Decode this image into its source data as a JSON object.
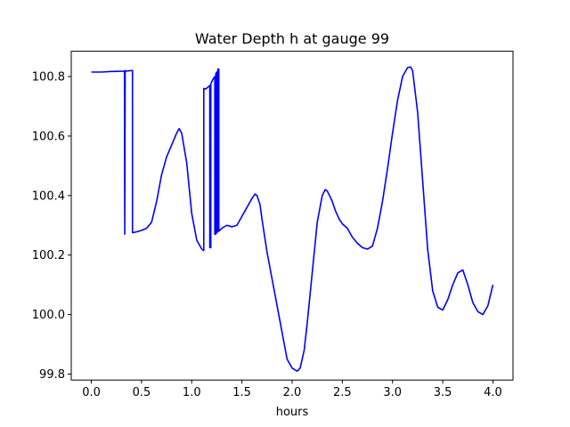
{
  "chart_data": {
    "type": "line",
    "title": "Water Depth h at gauge 99",
    "xlabel": "hours",
    "ylabel": "",
    "xlim": [
      -0.2,
      4.2
    ],
    "ylim": [
      99.78,
      100.885
    ],
    "xticks": [
      0.0,
      0.5,
      1.0,
      1.5,
      2.0,
      2.5,
      3.0,
      3.5,
      4.0
    ],
    "xtick_labels": [
      "0.0",
      "0.5",
      "1.0",
      "1.5",
      "2.0",
      "2.5",
      "3.0",
      "3.5",
      "4.0"
    ],
    "yticks": [
      99.8,
      100.0,
      100.2,
      100.4,
      100.6,
      100.8
    ],
    "ytick_labels": [
      "99.8",
      "100.0",
      "100.2",
      "100.4",
      "100.6",
      "100.8"
    ],
    "grid": false,
    "series": [
      {
        "color": "#0000ff",
        "x": [
          0.0,
          0.1,
          0.2,
          0.33,
          0.333,
          0.337,
          0.34,
          0.34,
          0.4,
          0.41,
          0.41,
          0.412,
          0.45,
          0.5,
          0.55,
          0.6,
          0.65,
          0.7,
          0.75,
          0.8,
          0.85,
          0.875,
          0.9,
          0.95,
          1.0,
          1.05,
          1.1,
          1.12,
          1.12,
          1.14,
          1.18,
          1.18,
          1.19,
          1.19,
          1.21,
          1.23,
          1.23,
          1.24,
          1.24,
          1.25,
          1.25,
          1.26,
          1.26,
          1.27,
          1.27,
          1.3,
          1.35,
          1.4,
          1.45,
          1.5,
          1.55,
          1.6,
          1.63,
          1.65,
          1.68,
          1.7,
          1.75,
          1.8,
          1.85,
          1.9,
          1.95,
          2.0,
          2.05,
          2.08,
          2.12,
          2.15,
          2.2,
          2.25,
          2.3,
          2.33,
          2.35,
          2.38,
          2.4,
          2.43,
          2.47,
          2.5,
          2.55,
          2.6,
          2.65,
          2.7,
          2.75,
          2.8,
          2.85,
          2.9,
          2.95,
          3.0,
          3.05,
          3.1,
          3.15,
          3.18,
          3.2,
          3.25,
          3.3,
          3.35,
          3.4,
          3.45,
          3.5,
          3.55,
          3.6,
          3.65,
          3.7,
          3.75,
          3.8,
          3.85,
          3.9,
          3.95,
          4.0
        ],
        "y": [
          100.815,
          100.815,
          100.817,
          100.818,
          100.27,
          100.82,
          100.82,
          100.818,
          100.82,
          100.82,
          100.275,
          100.275,
          100.278,
          100.283,
          100.29,
          100.31,
          100.38,
          100.47,
          100.53,
          100.57,
          100.61,
          100.625,
          100.61,
          100.51,
          100.34,
          100.25,
          100.22,
          100.215,
          100.76,
          100.758,
          100.77,
          100.225,
          100.225,
          100.775,
          100.79,
          100.8,
          100.27,
          100.27,
          100.81,
          100.815,
          100.275,
          100.28,
          100.825,
          100.825,
          100.28,
          100.29,
          100.3,
          100.295,
          100.3,
          100.33,
          100.36,
          100.39,
          100.405,
          100.4,
          100.37,
          100.32,
          100.21,
          100.12,
          100.03,
          99.94,
          99.85,
          99.82,
          99.81,
          99.82,
          99.88,
          99.97,
          100.14,
          100.31,
          100.4,
          100.42,
          100.415,
          100.395,
          100.38,
          100.35,
          100.32,
          100.305,
          100.29,
          100.26,
          100.24,
          100.225,
          100.22,
          100.23,
          100.29,
          100.38,
          100.49,
          100.61,
          100.72,
          100.8,
          100.83,
          100.832,
          100.82,
          100.68,
          100.45,
          100.22,
          100.08,
          100.025,
          100.015,
          100.05,
          100.1,
          100.14,
          100.15,
          100.1,
          100.04,
          100.01,
          100.0,
          100.03,
          100.1
        ]
      }
    ]
  }
}
